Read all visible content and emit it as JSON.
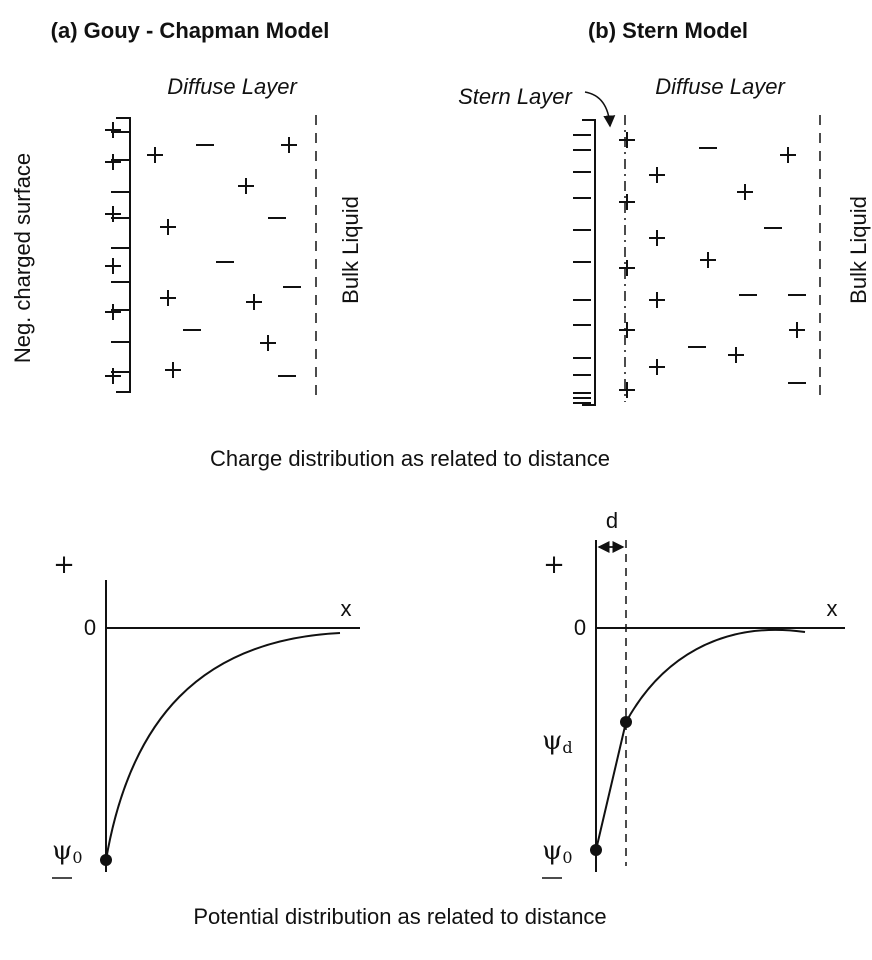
{
  "panels": [
    {
      "title": "(a) Gouy - Chapman Model",
      "diffuse_label": "Diffuse Layer",
      "surface_label": "Neg. charged surface",
      "bulk_label": "Bulk Liquid"
    },
    {
      "title": "(b) Stern Model",
      "stern_label": "Stern Layer",
      "diffuse_label": "Diffuse Layer",
      "bulk_label": "Bulk Liquid"
    }
  ],
  "charge_caption": "Charge distribution as related to distance",
  "plots": [
    {
      "plus_label": "+",
      "zero_label": "0",
      "x_label": "x",
      "psi0": {
        "symbol": "ψ",
        "subscript": "0"
      }
    },
    {
      "plus_label": "+",
      "zero_label": "0",
      "x_label": "x",
      "d_label": "d",
      "psid": {
        "symbol": "ψ",
        "subscript": "d"
      },
      "psi0": {
        "symbol": "ψ",
        "subscript": "0"
      }
    }
  ],
  "potential_caption": "Potential distribution as related to distance"
}
